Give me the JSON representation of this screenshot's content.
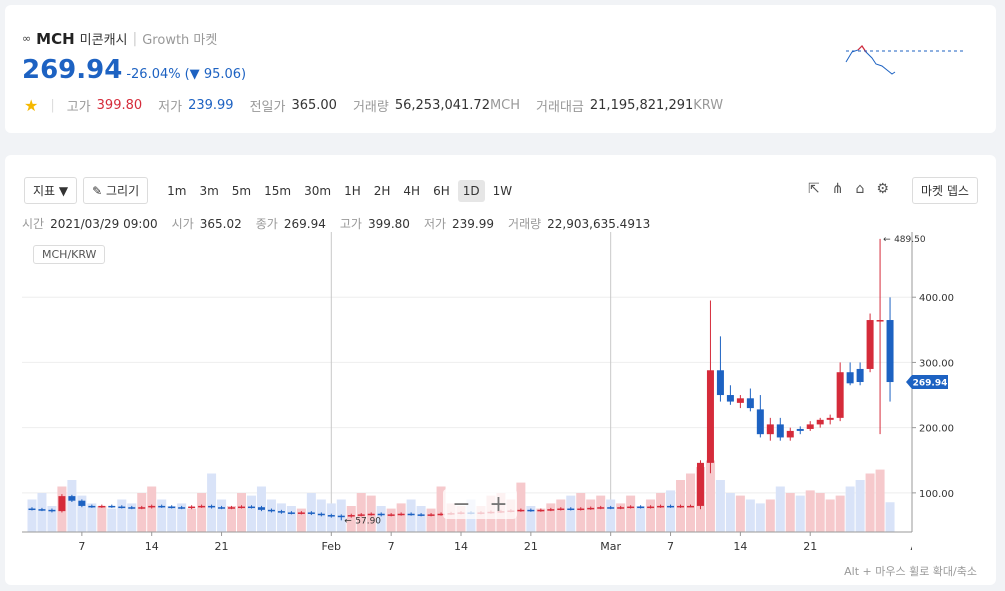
{
  "header": {
    "symbol": "MCH",
    "name": "미콘캐시",
    "market": "Growth 마켓",
    "price": "269.94",
    "change_pct": "-26.04%",
    "change": "95.06",
    "stats": [
      {
        "label": "고가",
        "value": "399.80"
      },
      {
        "label": "저가",
        "value": "239.99"
      },
      {
        "label": "전일가",
        "value": "365.00"
      },
      {
        "label": "거래량",
        "value": "56,253,041.72",
        "unit": "MCH"
      },
      {
        "label": "거래대금",
        "value": "21,195,821,291",
        "unit": "KRW"
      }
    ]
  },
  "toolbar": {
    "indicator": "지표",
    "draw": "그리기",
    "intervals": [
      "1m",
      "3m",
      "5m",
      "15m",
      "30m",
      "1H",
      "2H",
      "4H",
      "6H",
      "1D",
      "1W"
    ],
    "selected_interval": "1D",
    "depth": "마켓 뎁스"
  },
  "info": [
    {
      "label": "시간",
      "value": "2021/03/29 09:00"
    },
    {
      "label": "시가",
      "value": "365.02"
    },
    {
      "label": "종가",
      "value": "269.94"
    },
    {
      "label": "고가",
      "value": "399.80"
    },
    {
      "label": "저가",
      "value": "239.99"
    },
    {
      "label": "거래량",
      "value": "22,903,635.4913"
    }
  ],
  "footer": "Alt + 마우스 휠로 확대/축소",
  "chart_data": {
    "type": "candlestick",
    "pair_label": "MCH/KRW",
    "x": [
      "2021-01-02",
      "2021-01-03",
      "2021-01-04",
      "2021-01-05",
      "2021-01-06",
      "2021-01-07",
      "2021-01-08",
      "2021-01-09",
      "2021-01-10",
      "2021-01-11",
      "2021-01-12",
      "2021-01-13",
      "2021-01-14",
      "2021-01-15",
      "2021-01-16",
      "2021-01-17",
      "2021-01-18",
      "2021-01-19",
      "2021-01-20",
      "2021-01-21",
      "2021-01-22",
      "2021-01-23",
      "2021-01-24",
      "2021-01-25",
      "2021-01-26",
      "2021-01-27",
      "2021-01-28",
      "2021-01-29",
      "2021-01-30",
      "2021-01-31",
      "2021-02-01",
      "2021-02-02",
      "2021-02-03",
      "2021-02-04",
      "2021-02-05",
      "2021-02-06",
      "2021-02-07",
      "2021-02-08",
      "2021-02-09",
      "2021-02-10",
      "2021-02-11",
      "2021-02-12",
      "2021-02-13",
      "2021-02-14",
      "2021-02-15",
      "2021-02-16",
      "2021-02-17",
      "2021-02-18",
      "2021-02-19",
      "2021-02-20",
      "2021-02-21",
      "2021-02-22",
      "2021-02-23",
      "2021-02-24",
      "2021-02-25",
      "2021-02-26",
      "2021-02-27",
      "2021-02-28",
      "2021-03-01",
      "2021-03-02",
      "2021-03-03",
      "2021-03-04",
      "2021-03-05",
      "2021-03-06",
      "2021-03-07",
      "2021-03-08",
      "2021-03-09",
      "2021-03-10",
      "2021-03-11",
      "2021-03-12",
      "2021-03-13",
      "2021-03-14",
      "2021-03-15",
      "2021-03-16",
      "2021-03-17",
      "2021-03-18",
      "2021-03-19",
      "2021-03-20",
      "2021-03-21",
      "2021-03-22",
      "2021-03-23",
      "2021-03-24",
      "2021-03-25",
      "2021-03-26",
      "2021-03-27",
      "2021-03-28",
      "2021-03-29"
    ],
    "open": [
      76,
      75,
      74,
      72,
      95,
      88,
      80,
      79,
      80,
      79,
      78,
      77,
      78,
      80,
      79,
      78,
      77,
      79,
      80,
      78,
      77,
      78,
      79,
      78,
      74,
      72,
      70,
      69,
      70,
      68,
      66,
      65,
      64,
      66,
      67,
      68,
      66,
      67,
      68,
      67,
      66,
      67,
      68,
      69,
      70,
      69,
      70,
      71,
      72,
      73,
      74,
      73,
      74,
      75,
      76,
      75,
      76,
      77,
      78,
      77,
      78,
      79,
      78,
      79,
      80,
      79,
      80,
      80,
      146,
      288,
      250,
      238,
      245,
      228,
      190,
      205,
      185,
      198,
      198,
      205,
      212,
      215,
      285,
      290,
      290,
      365,
      365.02
    ],
    "high": [
      78,
      77,
      76,
      98,
      97,
      90,
      82,
      82,
      82,
      81,
      80,
      80,
      82,
      82,
      81,
      80,
      81,
      82,
      82,
      80,
      80,
      81,
      81,
      80,
      76,
      74,
      72,
      72,
      72,
      70,
      68,
      67,
      68,
      69,
      70,
      70,
      69,
      70,
      70,
      69,
      69,
      70,
      71,
      72,
      72,
      72,
      73,
      74,
      75,
      76,
      76,
      76,
      77,
      78,
      78,
      78,
      79,
      80,
      80,
      80,
      81,
      81,
      81,
      82,
      82,
      82,
      82,
      150,
      395,
      340,
      265,
      250,
      260,
      250,
      215,
      215,
      200,
      202,
      210,
      215,
      220,
      300,
      300,
      300,
      375,
      489.5,
      399.8
    ],
    "low": [
      73,
      72,
      70,
      70,
      86,
      78,
      77,
      77,
      77,
      76,
      75,
      75,
      76,
      77,
      76,
      75,
      75,
      77,
      76,
      75,
      75,
      76,
      76,
      72,
      70,
      68,
      67,
      67,
      66,
      64,
      62,
      57.9,
      62,
      64,
      65,
      64,
      64,
      65,
      65,
      64,
      64,
      65,
      66,
      67,
      67,
      67,
      68,
      69,
      70,
      71,
      71,
      71,
      72,
      73,
      73,
      73,
      74,
      75,
      75,
      75,
      76,
      76,
      76,
      77,
      77,
      77,
      78,
      75,
      130,
      240,
      235,
      230,
      225,
      185,
      180,
      180,
      180,
      190,
      195,
      200,
      205,
      210,
      265,
      265,
      285,
      190,
      239.99
    ],
    "close": [
      75,
      74,
      72,
      95,
      88,
      80,
      79,
      80,
      79,
      78,
      77,
      78,
      80,
      79,
      78,
      77,
      79,
      80,
      78,
      77,
      78,
      79,
      78,
      74,
      72,
      70,
      69,
      70,
      68,
      66,
      65,
      64,
      66,
      67,
      68,
      66,
      67,
      68,
      67,
      66,
      67,
      68,
      69,
      70,
      69,
      70,
      71,
      72,
      73,
      74,
      73,
      74,
      75,
      76,
      75,
      76,
      77,
      78,
      77,
      78,
      79,
      78,
      79,
      80,
      79,
      80,
      80,
      146,
      288,
      250,
      240,
      245,
      230,
      190,
      205,
      185,
      195,
      195,
      205,
      212,
      215,
      285,
      268,
      270,
      365,
      365.02,
      269.94
    ],
    "volume": [
      25,
      30,
      20,
      35,
      40,
      28,
      22,
      20,
      18,
      25,
      22,
      30,
      35,
      25,
      20,
      22,
      18,
      30,
      45,
      25,
      20,
      30,
      28,
      35,
      25,
      22,
      20,
      18,
      30,
      25,
      22,
      25,
      20,
      30,
      28,
      20,
      18,
      22,
      25,
      20,
      18,
      35,
      22,
      20,
      25,
      20,
      28,
      30,
      25,
      38,
      20,
      18,
      22,
      25,
      28,
      30,
      25,
      28,
      25,
      22,
      28,
      20,
      25,
      30,
      32,
      40,
      45,
      50,
      55,
      40,
      30,
      28,
      25,
      22,
      25,
      35,
      30,
      28,
      32,
      30,
      25,
      28,
      35,
      40,
      45,
      48,
      22.9
    ],
    "up_color": "#d52b3a",
    "down_color": "#1d62c2",
    "up_volume_color": "#f6c9cc",
    "down_volume_color": "#d9e3f8",
    "xlim": [
      "2021-01-01",
      "2021-03-31"
    ],
    "xticks": [
      {
        "value": "2021-01-07",
        "label": "7"
      },
      {
        "value": "2021-01-14",
        "label": "14"
      },
      {
        "value": "2021-01-21",
        "label": "21"
      },
      {
        "value": "2021-02-01",
        "label": "Feb"
      },
      {
        "value": "2021-02-07",
        "label": "7"
      },
      {
        "value": "2021-02-14",
        "label": "14"
      },
      {
        "value": "2021-02-21",
        "label": "21"
      },
      {
        "value": "2021-03-01",
        "label": "Mar"
      },
      {
        "value": "2021-03-07",
        "label": "7"
      },
      {
        "value": "2021-03-14",
        "label": "14"
      },
      {
        "value": "2021-03-21",
        "label": "21"
      },
      {
        "value": "2021-04-01",
        "label": "Apr"
      }
    ],
    "ylim": [
      40,
      500
    ],
    "yticks": [
      {
        "value": 100,
        "label": "100.00"
      },
      {
        "value": 200,
        "label": "200.00"
      },
      {
        "value": 300,
        "label": "300.00"
      },
      {
        "value": 400,
        "label": "400.00"
      }
    ],
    "last_price": {
      "value": 269.94,
      "label": "269.94"
    },
    "annotations": [
      {
        "x": "2021-03-28",
        "value": 489.5,
        "label": "489.50"
      },
      {
        "x": "2021-02-02",
        "value": 57.9,
        "label": "57.90"
      }
    ],
    "grid": true
  }
}
